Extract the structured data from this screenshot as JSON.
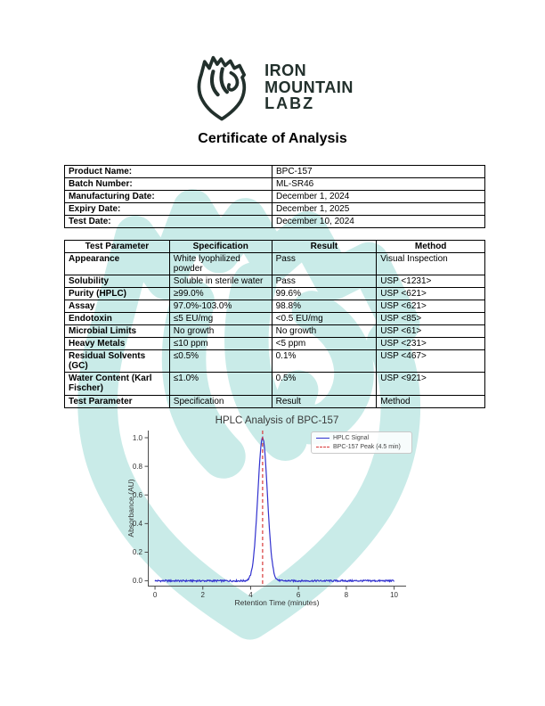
{
  "header": {
    "brand_line1": "IRON",
    "brand_line2": "MOUNTAIN",
    "brand_line3": "LABZ",
    "title": "Certificate of Analysis"
  },
  "product_info": {
    "rows": [
      {
        "label": "Product Name:",
        "value": "BPC-157"
      },
      {
        "label": "Batch Number:",
        "value": "ML-SR46"
      },
      {
        "label": "Manufacturing Date:",
        "value": "December 1, 2024"
      },
      {
        "label": "Expiry Date:",
        "value": "December 1, 2025"
      },
      {
        "label": "Test Date:",
        "value": "December 10, 2024"
      }
    ]
  },
  "results_table": {
    "headers": [
      "Test Parameter",
      "Specification",
      "Result",
      "Method"
    ],
    "rows": [
      [
        "Appearance",
        "White lyophilized powder",
        "Pass",
        "Visual Inspection"
      ],
      [
        "Solubility",
        "Soluble in sterile water",
        "Pass",
        "USP <1231>"
      ],
      [
        "Purity (HPLC)",
        "≥99.0%",
        "99.6%",
        "USP <621>"
      ],
      [
        "Assay",
        "97.0%-103.0%",
        "98.8%",
        "USP <621>"
      ],
      [
        "Endotoxin",
        "≤5 EU/mg",
        "<0.5 EU/mg",
        "USP <85>"
      ],
      [
        "Microbial Limits",
        "No growth",
        "No growth",
        "USP <61>"
      ],
      [
        "Heavy Metals",
        "≤10 ppm",
        "<5 ppm",
        "USP <231>"
      ],
      [
        "Residual Solvents (GC)",
        "≤0.5%",
        "0.1%",
        "USP <467>"
      ],
      [
        "Water Content (Karl Fischer)",
        "≤1.0%",
        "0.5%",
        "USP <921>"
      ],
      [
        "Test Parameter",
        "Specification",
        "Result",
        "Method"
      ]
    ]
  },
  "chart_data": {
    "type": "line",
    "title": "HPLC Analysis of BPC-157",
    "xlabel": "Retention Time (minutes)",
    "ylabel": "Absorbance (AU)",
    "xlim": [
      -0.3,
      10.5
    ],
    "ylim": [
      -0.04,
      1.05
    ],
    "x_ticks": [
      0,
      2,
      4,
      6,
      8,
      10
    ],
    "y_ticks": [
      0.0,
      0.2,
      0.4,
      0.6,
      0.8,
      1.0
    ],
    "grid": false,
    "legend_position": "upper right",
    "series": [
      {
        "name": "HPLC Signal",
        "type": "gaussian_peak",
        "color": "#3232cf",
        "x_range": [
          0,
          10
        ],
        "baseline": 0.0,
        "noise_amplitude": 0.006,
        "peak_center": 4.5,
        "peak_height": 1.0,
        "peak_sigma": 0.2
      },
      {
        "name": "BPC-157 Peak (4.5 min)",
        "type": "vline",
        "color": "#d83a3a",
        "style": "dashed",
        "x": 4.5
      }
    ]
  },
  "watermark": {
    "color": "#9edcd6"
  }
}
